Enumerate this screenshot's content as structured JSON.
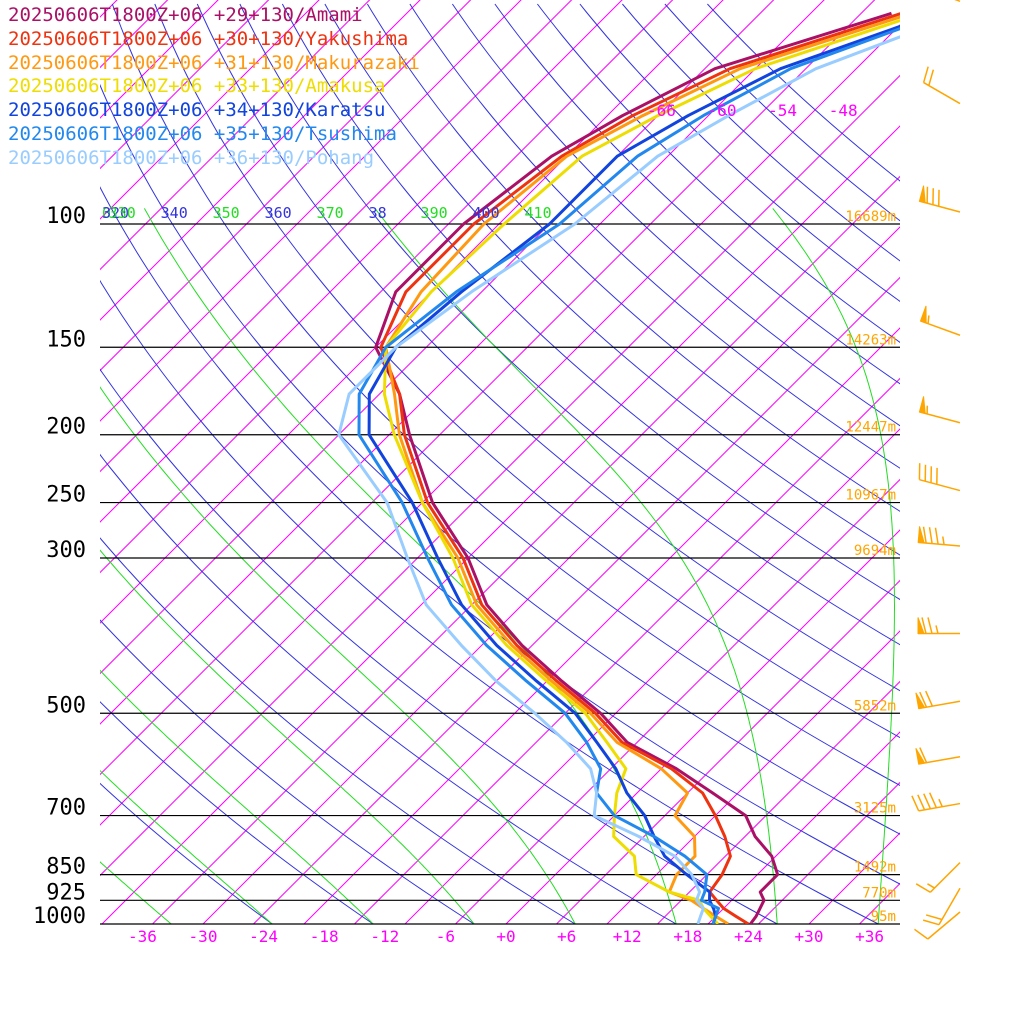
{
  "chart_data": {
    "type": "line",
    "title": "",
    "xlabel": "",
    "ylabel": "",
    "pressure_levels": [
      {
        "label": "100",
        "p": 100
      },
      {
        "label": "150",
        "p": 150
      },
      {
        "label": "200",
        "p": 200
      },
      {
        "label": "250",
        "p": 250
      },
      {
        "label": "300",
        "p": 300
      },
      {
        "label": "500",
        "p": 500
      },
      {
        "label": "700",
        "p": 700
      },
      {
        "label": "850",
        "p": 850
      },
      {
        "label": "925",
        "p": 925
      },
      {
        "label": "1000",
        "p": 1000
      }
    ],
    "x_ticks": [
      {
        "label": "-36",
        "t": -36
      },
      {
        "label": "-30",
        "t": -30
      },
      {
        "label": "-24",
        "t": -24
      },
      {
        "label": "-18",
        "t": -18
      },
      {
        "label": "-12",
        "t": -12
      },
      {
        "label": "-6",
        "t": -6
      },
      {
        "label": "+0",
        "t": 0
      },
      {
        "label": "+6",
        "t": 6
      },
      {
        "label": "+12",
        "t": 12
      },
      {
        "label": "+18",
        "t": 18
      },
      {
        "label": "+24",
        "t": 24
      },
      {
        "label": "+30",
        "t": 30
      },
      {
        "label": "+36",
        "t": 36
      }
    ],
    "skew_labels": [
      {
        "label": "-66",
        "t": -66
      },
      {
        "label": "-60",
        "t": -60
      },
      {
        "label": "-54",
        "t": -54
      },
      {
        "label": "-48",
        "t": -48
      }
    ],
    "theta_lines": [
      310,
      320,
      330,
      340,
      350,
      360,
      370,
      380,
      390,
      400,
      410
    ],
    "theta_labels": [
      {
        "label": "0",
        "theta": 310
      },
      {
        "label": "320",
        "theta": 320
      },
      {
        "label": "330",
        "theta": 330
      },
      {
        "label": "340",
        "theta": 340
      },
      {
        "label": "350",
        "theta": 350
      },
      {
        "label": "360",
        "theta": 360
      },
      {
        "label": "370",
        "theta": 370
      },
      {
        "label": "38",
        "theta": 380
      },
      {
        "label": "390",
        "theta": 390
      },
      {
        "label": "400",
        "theta": 400
      },
      {
        "label": "410",
        "theta": 410
      }
    ],
    "height_labels": [
      {
        "label": "16689m",
        "p": 100
      },
      {
        "label": "14263m",
        "p": 150
      },
      {
        "label": "12447m",
        "p": 200
      },
      {
        "label": "10967m",
        "p": 250
      },
      {
        "label": "9694m",
        "p": 300
      },
      {
        "label": "5852m",
        "p": 500
      },
      {
        "label": "3125m",
        "p": 700
      },
      {
        "label": "1492m",
        "p": 850
      },
      {
        "label": "770m",
        "p": 925
      },
      {
        "label": "95m",
        "p": 1000
      }
    ],
    "series": [
      {
        "name": "20250606T1800Z+06 +29+130/Amami",
        "color": "#aa1166",
        "points": [
          [
            1000,
            24.2
          ],
          [
            975,
            24
          ],
          [
            950,
            23.6
          ],
          [
            925,
            23.2
          ],
          [
            900,
            22
          ],
          [
            850,
            22
          ],
          [
            800,
            19.6
          ],
          [
            750,
            16
          ],
          [
            700,
            13
          ],
          [
            650,
            7.5
          ],
          [
            600,
            1.5
          ],
          [
            550,
            -6
          ],
          [
            500,
            -11.5
          ],
          [
            450,
            -18.5
          ],
          [
            400,
            -26
          ],
          [
            350,
            -33.5
          ],
          [
            300,
            -40
          ],
          [
            250,
            -49
          ],
          [
            200,
            -58
          ],
          [
            175,
            -63
          ],
          [
            150,
            -70
          ],
          [
            125,
            -73.5
          ],
          [
            100,
            -73.5
          ],
          [
            80,
            -71.5
          ],
          [
            70,
            -68.5
          ],
          [
            60,
            -64
          ],
          [
            50,
            -52
          ]
        ]
      },
      {
        "name": "20250606T1800Z+06 +30+130/Yakushima",
        "color": "#ee3311",
        "points": [
          [
            1000,
            24
          ],
          [
            975,
            22
          ],
          [
            950,
            20
          ],
          [
            925,
            18.5
          ],
          [
            900,
            17
          ],
          [
            850,
            16.5
          ],
          [
            800,
            15.5
          ],
          [
            750,
            13
          ],
          [
            700,
            10
          ],
          [
            650,
            6.5
          ],
          [
            600,
            1
          ],
          [
            550,
            -6.5
          ],
          [
            500,
            -12
          ],
          [
            450,
            -19
          ],
          [
            400,
            -26.5
          ],
          [
            350,
            -34
          ],
          [
            300,
            -40.5
          ],
          [
            250,
            -49.5
          ],
          [
            200,
            -58.5
          ],
          [
            175,
            -63
          ],
          [
            150,
            -69.5
          ],
          [
            125,
            -72.5
          ],
          [
            100,
            -72.5
          ],
          [
            80,
            -70.5
          ],
          [
            70,
            -67.5
          ],
          [
            60,
            -62.5
          ],
          [
            50,
            -51
          ]
        ]
      },
      {
        "name": "20250606T1800Z+06 +31+130/Makurazaki",
        "color": "#ff9911",
        "points": [
          [
            1000,
            22
          ],
          [
            975,
            20
          ],
          [
            950,
            18
          ],
          [
            925,
            16
          ],
          [
            900,
            13
          ],
          [
            850,
            12
          ],
          [
            800,
            12
          ],
          [
            750,
            10
          ],
          [
            700,
            6
          ],
          [
            650,
            5
          ],
          [
            600,
            0
          ],
          [
            550,
            -7
          ],
          [
            500,
            -12.5
          ],
          [
            450,
            -19.5
          ],
          [
            400,
            -27
          ],
          [
            350,
            -34.5
          ],
          [
            300,
            -41
          ],
          [
            250,
            -50
          ],
          [
            200,
            -59
          ],
          [
            175,
            -63.5
          ],
          [
            150,
            -69
          ],
          [
            125,
            -71
          ],
          [
            100,
            -71.5
          ],
          [
            80,
            -70
          ],
          [
            70,
            -66.5
          ],
          [
            60,
            -61.5
          ],
          [
            50,
            -50
          ]
        ]
      },
      {
        "name": "20250606T1800Z+06 +33+130/Amakusa",
        "color": "#eedd00",
        "points": [
          [
            1000,
            21
          ],
          [
            975,
            19.5
          ],
          [
            950,
            18
          ],
          [
            925,
            16.8
          ],
          [
            900,
            13
          ],
          [
            850,
            8
          ],
          [
            800,
            6
          ],
          [
            750,
            2
          ],
          [
            700,
            0
          ],
          [
            650,
            -2
          ],
          [
            600,
            -3.5
          ],
          [
            550,
            -8
          ],
          [
            500,
            -13
          ],
          [
            450,
            -20
          ],
          [
            400,
            -27.5
          ],
          [
            350,
            -35
          ],
          [
            300,
            -41.5
          ],
          [
            250,
            -50
          ],
          [
            200,
            -59.5
          ],
          [
            175,
            -64.5
          ],
          [
            150,
            -69
          ],
          [
            125,
            -70
          ],
          [
            100,
            -69.5
          ],
          [
            80,
            -68.5
          ],
          [
            70,
            -65
          ],
          [
            60,
            -60
          ],
          [
            50,
            -49
          ]
        ]
      },
      {
        "name": "20250606T1800Z+06 +34+130/Karatsu",
        "color": "#1144dd",
        "points": [
          [
            1000,
            20.5
          ],
          [
            975,
            20
          ],
          [
            950,
            19
          ],
          [
            925,
            17.8
          ],
          [
            900,
            17
          ],
          [
            850,
            13
          ],
          [
            800,
            9
          ],
          [
            750,
            6
          ],
          [
            700,
            3
          ],
          [
            650,
            -1
          ],
          [
            600,
            -4.5
          ],
          [
            550,
            -9
          ],
          [
            500,
            -14
          ],
          [
            450,
            -21
          ],
          [
            400,
            -28.5
          ],
          [
            350,
            -36
          ],
          [
            300,
            -43
          ],
          [
            250,
            -51
          ],
          [
            200,
            -62
          ],
          [
            175,
            -66
          ],
          [
            150,
            -68
          ],
          [
            125,
            -67
          ],
          [
            100,
            -65
          ],
          [
            80,
            -65
          ],
          [
            70,
            -62
          ],
          [
            60,
            -57.5
          ],
          [
            50,
            -47.5
          ]
        ]
      },
      {
        "name": "20250606T1800Z+06 +35+130/Tsushima",
        "color": "#2288ee",
        "points": [
          [
            1000,
            20.5
          ],
          [
            975,
            20
          ],
          [
            950,
            19.5
          ],
          [
            925,
            17
          ],
          [
            900,
            16.5
          ],
          [
            850,
            15
          ],
          [
            800,
            11
          ],
          [
            750,
            6
          ],
          [
            700,
            0
          ],
          [
            650,
            -4
          ],
          [
            600,
            -6
          ],
          [
            550,
            -10
          ],
          [
            500,
            -15
          ],
          [
            450,
            -22
          ],
          [
            400,
            -29.5
          ],
          [
            350,
            -37
          ],
          [
            300,
            -44
          ],
          [
            250,
            -52
          ],
          [
            200,
            -63
          ],
          [
            175,
            -67
          ],
          [
            150,
            -69
          ],
          [
            125,
            -67.5
          ],
          [
            100,
            -64
          ],
          [
            80,
            -63
          ],
          [
            70,
            -60.5
          ],
          [
            60,
            -56.5
          ],
          [
            50,
            -47
          ]
        ]
      },
      {
        "name": "20250606T1800Z+06 +36+130/Pohang",
        "color": "#99ccff",
        "points": [
          [
            1000,
            19
          ],
          [
            975,
            18.5
          ],
          [
            950,
            18
          ],
          [
            925,
            16.5
          ],
          [
            900,
            16
          ],
          [
            850,
            13.5
          ],
          [
            800,
            10
          ],
          [
            750,
            4.5
          ],
          [
            700,
            -2
          ],
          [
            650,
            -4
          ],
          [
            600,
            -7
          ],
          [
            550,
            -12
          ],
          [
            500,
            -18
          ],
          [
            450,
            -25
          ],
          [
            400,
            -32
          ],
          [
            350,
            -39.5
          ],
          [
            300,
            -46
          ],
          [
            250,
            -53.5
          ],
          [
            200,
            -65
          ],
          [
            175,
            -68
          ],
          [
            150,
            -68
          ],
          [
            125,
            -66
          ],
          [
            100,
            -62.5
          ],
          [
            80,
            -61
          ],
          [
            70,
            -58
          ],
          [
            60,
            -54
          ],
          [
            50,
            -45
          ]
        ]
      }
    ],
    "wind_barbs": [
      {
        "p": 50,
        "dir": 290,
        "speed": 25
      },
      {
        "p": 70,
        "dir": 300,
        "speed": 20
      },
      {
        "p": 100,
        "dir": 285,
        "speed": 80
      },
      {
        "p": 150,
        "dir": 290,
        "speed": 55
      },
      {
        "p": 200,
        "dir": 285,
        "speed": 55
      },
      {
        "p": 250,
        "dir": 285,
        "speed": 40
      },
      {
        "p": 300,
        "dir": 275,
        "speed": 85
      },
      {
        "p": 400,
        "dir": 270,
        "speed": 75
      },
      {
        "p": 500,
        "dir": 260,
        "speed": 70
      },
      {
        "p": 600,
        "dir": 260,
        "speed": 60
      },
      {
        "p": 700,
        "dir": 260,
        "speed": 45
      },
      {
        "p": 850,
        "dir": 225,
        "speed": 15
      },
      {
        "p": 925,
        "dir": 210,
        "speed": 20
      },
      {
        "p": 1000,
        "dir": 230,
        "speed": 10
      }
    ],
    "barb_color": "#ffa500",
    "isotherm_color": "#ff00ff",
    "dry_adiabat_color": "#3333dd",
    "moist_adiabat_color": "#22dd22",
    "grid": true,
    "legend_position": "top-left"
  }
}
